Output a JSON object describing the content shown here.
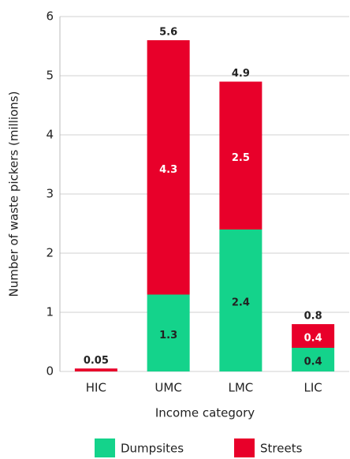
{
  "chart_data": {
    "type": "bar",
    "stacked": true,
    "y_label": "Number of waste pickers (millions)",
    "x_label": "Income category",
    "categories": [
      "HIC",
      "UMC",
      "LMC",
      "LIC"
    ],
    "series": [
      {
        "name": "Dumpsites",
        "color": "#14d38b",
        "values": [
          0,
          1.3,
          2.4,
          0.4
        ]
      },
      {
        "name": "Streets",
        "color": "#e8002a",
        "values": [
          0.05,
          4.3,
          2.5,
          0.4
        ]
      }
    ],
    "totals": [
      0.05,
      5.6,
      4.9,
      0.8
    ],
    "ylim": [
      0,
      6
    ],
    "yticks": [
      0,
      1,
      2,
      3,
      4,
      5,
      6
    ],
    "grid": true,
    "legend": "bottom"
  }
}
